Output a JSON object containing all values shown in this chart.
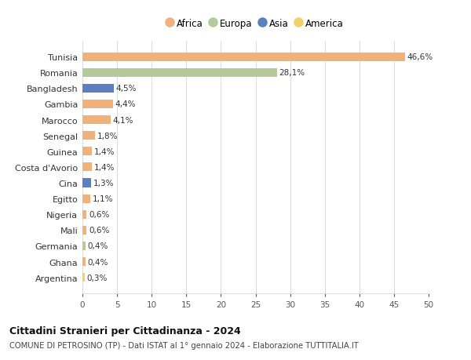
{
  "categories": [
    "Tunisia",
    "Romania",
    "Bangladesh",
    "Gambia",
    "Marocco",
    "Senegal",
    "Guinea",
    "Costa d'Avorio",
    "Cina",
    "Egitto",
    "Nigeria",
    "Mali",
    "Germania",
    "Ghana",
    "Argentina"
  ],
  "values": [
    46.6,
    28.1,
    4.5,
    4.4,
    4.1,
    1.8,
    1.4,
    1.4,
    1.3,
    1.1,
    0.6,
    0.6,
    0.4,
    0.4,
    0.3
  ],
  "labels": [
    "46,6%",
    "28,1%",
    "4,5%",
    "4,4%",
    "4,1%",
    "1,8%",
    "1,4%",
    "1,4%",
    "1,3%",
    "1,1%",
    "0,6%",
    "0,6%",
    "0,4%",
    "0,4%",
    "0,3%"
  ],
  "colors": [
    "#F0B27A",
    "#B5C99A",
    "#5B7FC1",
    "#F0B27A",
    "#F0B27A",
    "#F0B27A",
    "#F0B27A",
    "#F0B27A",
    "#5B7FC1",
    "#F0B27A",
    "#F0B27A",
    "#F0B27A",
    "#B5C99A",
    "#F0B27A",
    "#F2D16A"
  ],
  "legend": [
    {
      "label": "Africa",
      "color": "#F0B27A"
    },
    {
      "label": "Europa",
      "color": "#B5C99A"
    },
    {
      "label": "Asia",
      "color": "#5B7FC1"
    },
    {
      "label": "America",
      "color": "#F2D16A"
    }
  ],
  "title": "Cittadini Stranieri per Cittadinanza - 2024",
  "subtitle": "COMUNE DI PETROSINO (TP) - Dati ISTAT al 1° gennaio 2024 - Elaborazione TUTTITALIA.IT",
  "xlim": [
    0,
    50
  ],
  "xticks": [
    0,
    5,
    10,
    15,
    20,
    25,
    30,
    35,
    40,
    45,
    50
  ],
  "background_color": "#ffffff",
  "grid_color": "#dddddd"
}
